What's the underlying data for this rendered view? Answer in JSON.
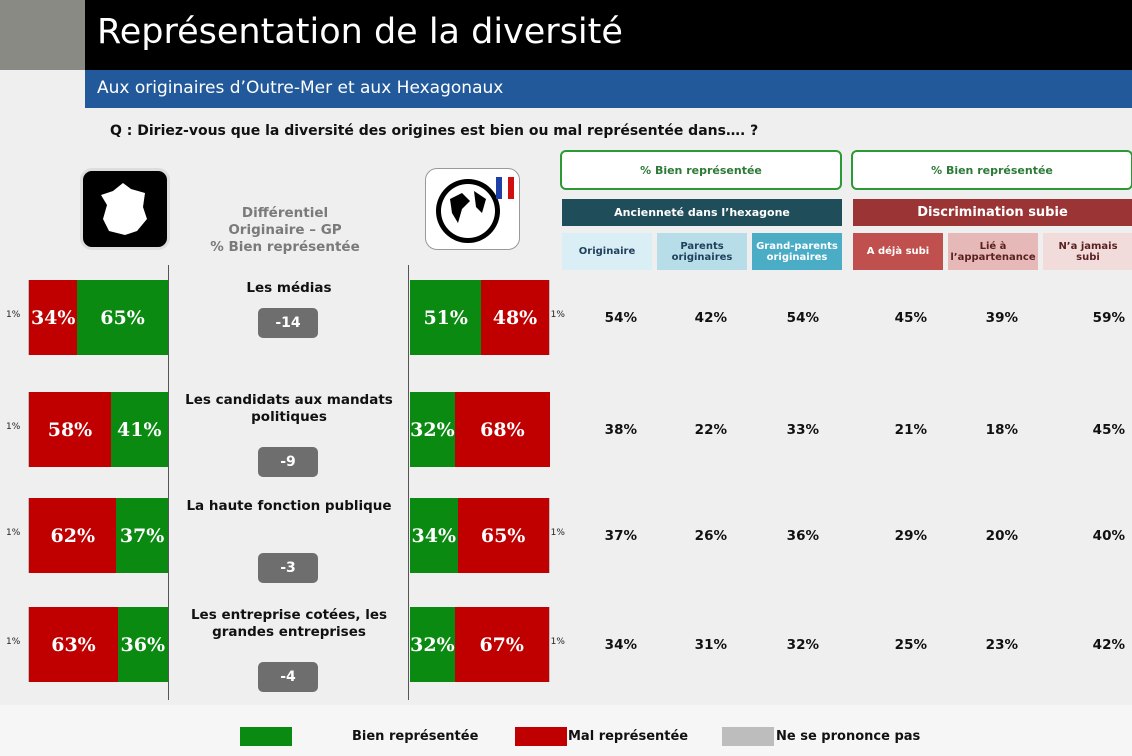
{
  "header": {
    "title": "Représentation de la diversité",
    "subtitle": "Aux originaires d’Outre-Mer et aux Hexagonaux"
  },
  "question": "Q : Diriez-vous que la diversité des origines est bien ou mal représentée dans…. ?",
  "differential_header": [
    "Différentiel",
    "Originaire – GP",
    "% Bien représentée"
  ],
  "groups": [
    {
      "title": "% Bien représentée",
      "subtitle": "Ancienneté dans l’hexagone",
      "columns": [
        "Originaire",
        "Parents originaires",
        "Grand-parents originaires"
      ]
    },
    {
      "title": "% Bien représentée",
      "subtitle": "Discrimination subie",
      "columns": [
        "A déjà subi",
        "Lié à l’appartenance",
        "N’a jamais subi"
      ]
    }
  ],
  "rows": [
    {
      "label": "Les médias",
      "left": {
        "nsp": 1,
        "mal": 34,
        "bien": 65
      },
      "left_labels": {
        "nsp": "1%",
        "mal": "34%",
        "bien": "65%"
      },
      "differential": -14,
      "right": {
        "bien": 51,
        "mal": 48,
        "nsp": 1
      },
      "right_labels": {
        "bien": "51%",
        "mal": "48%",
        "nsp": "1%"
      },
      "scores": [
        "54%",
        "42%",
        "54%",
        "45%",
        "39%",
        "59%"
      ]
    },
    {
      "label": "Les candidats aux mandats politiques",
      "left": {
        "nsp": 1,
        "mal": 58,
        "bien": 41
      },
      "left_labels": {
        "nsp": "1%",
        "mal": "58%",
        "bien": "41%"
      },
      "differential": -9,
      "right": {
        "bien": 32,
        "mal": 68
      },
      "right_labels": {
        "bien": "32%",
        "mal": "68%"
      },
      "scores": [
        "38%",
        "22%",
        "33%",
        "21%",
        "18%",
        "45%"
      ]
    },
    {
      "label": "La haute fonction publique",
      "left": {
        "nsp": 1,
        "mal": 62,
        "bien": 37
      },
      "left_labels": {
        "nsp": "1%",
        "mal": "62%",
        "bien": "37%"
      },
      "differential": -3,
      "right": {
        "bien": 34,
        "mal": 65,
        "nsp": 1
      },
      "right_labels": {
        "bien": "34%",
        "mal": "65%",
        "nsp": "1%"
      },
      "scores": [
        "37%",
        "26%",
        "36%",
        "29%",
        "20%",
        "40%"
      ]
    },
    {
      "label": "Les entreprise cotées, les grandes entreprises",
      "left": {
        "nsp": 1,
        "mal": 63,
        "bien": 36
      },
      "left_labels": {
        "nsp": "1%",
        "mal": "63%",
        "bien": "36%"
      },
      "differential": -4,
      "right": {
        "bien": 32,
        "mal": 67,
        "nsp": 1
      },
      "right_labels": {
        "bien": "32%",
        "mal": "67%",
        "nsp": "1%"
      },
      "scores": [
        "34%",
        "31%",
        "32%",
        "25%",
        "23%",
        "42%"
      ]
    }
  ],
  "legend": [
    {
      "key": "bien",
      "name": "Bien représentée",
      "color": "#0b8a12"
    },
    {
      "key": "mal",
      "name": "Mal représentée",
      "color": "#c00000"
    },
    {
      "key": "nsp",
      "name": "Ne se prononce pas",
      "color": "#bdbdbd"
    }
  ]
}
